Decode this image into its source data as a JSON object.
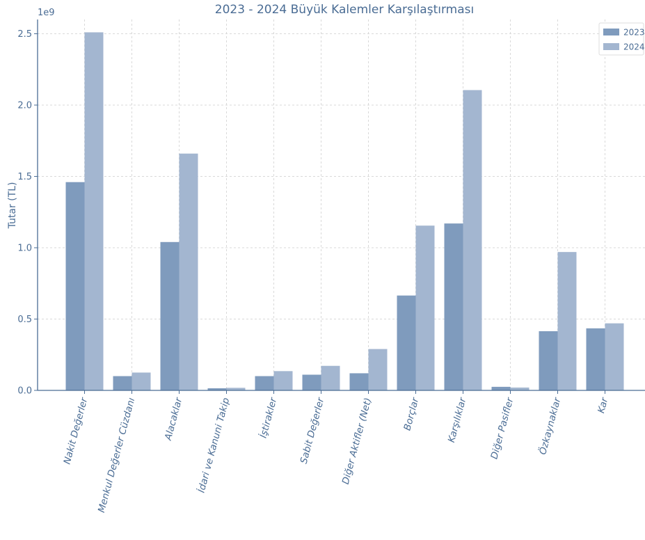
{
  "chart_data": {
    "type": "bar",
    "title": "2023 - 2024 Büyük Kalemler Karşılaştırması",
    "xlabel": "",
    "ylabel": "Tutar (TL)",
    "y_offset_label": "1e9",
    "ylim": [
      0,
      2.6
    ],
    "y_ticks": [
      "0.0",
      "0.5",
      "1.0",
      "1.5",
      "2.0",
      "2.5"
    ],
    "grid": true,
    "legend_position": "top-right",
    "categories": [
      "Nakit Değerler",
      "Menkul Değerler Cüzdanı",
      "Alacaklar",
      "İdari ve Kanuni Takip",
      "İştirakler",
      "Sabit Değerler",
      "Diğer Aktifler (Net)",
      "Borçlar",
      "Karşılıklar",
      "Diğer Pasifler",
      "Özkaynaklar",
      "Kar"
    ],
    "series": [
      {
        "name": "2023",
        "color": "#7f9bbd",
        "values": [
          1.46,
          0.1,
          1.04,
          0.015,
          0.1,
          0.11,
          0.12,
          0.665,
          1.17,
          0.025,
          0.415,
          0.435
        ]
      },
      {
        "name": "2024",
        "color": "#a3b6d0",
        "values": [
          2.51,
          0.125,
          1.66,
          0.018,
          0.135,
          0.172,
          0.29,
          1.155,
          2.105,
          0.02,
          0.97,
          0.47
        ]
      }
    ]
  }
}
